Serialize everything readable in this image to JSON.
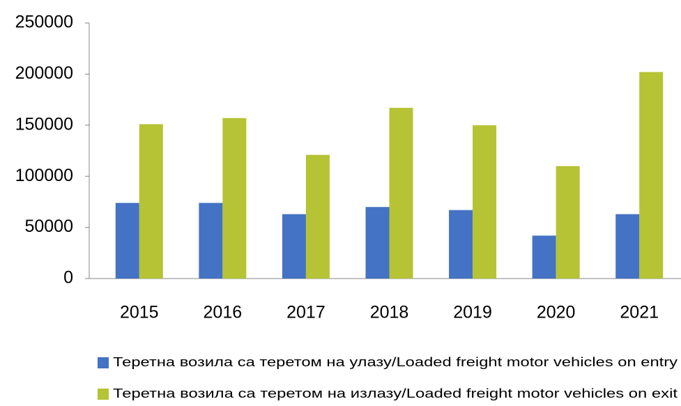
{
  "chart_data": {
    "type": "bar",
    "categories": [
      "2015",
      "2016",
      "2017",
      "2018",
      "2019",
      "2020",
      "2021"
    ],
    "series": [
      {
        "name": "Теретна возила са теретом на улазу/Loaded freight motor vehicles on entry",
        "color": "#4472c4",
        "values": [
          74000,
          74000,
          63000,
          70000,
          67000,
          42000,
          63000
        ]
      },
      {
        "name": "Теретна возила са теретом на излазу/Loaded freight motor vehicles on exit",
        "color": "#b5c334",
        "values": [
          151000,
          157000,
          121000,
          167000,
          150000,
          110000,
          202000
        ]
      }
    ],
    "ylim": [
      0,
      250000
    ],
    "yticks": [
      0,
      50000,
      100000,
      150000,
      200000,
      250000
    ],
    "grid": false,
    "legend": "bottom"
  }
}
